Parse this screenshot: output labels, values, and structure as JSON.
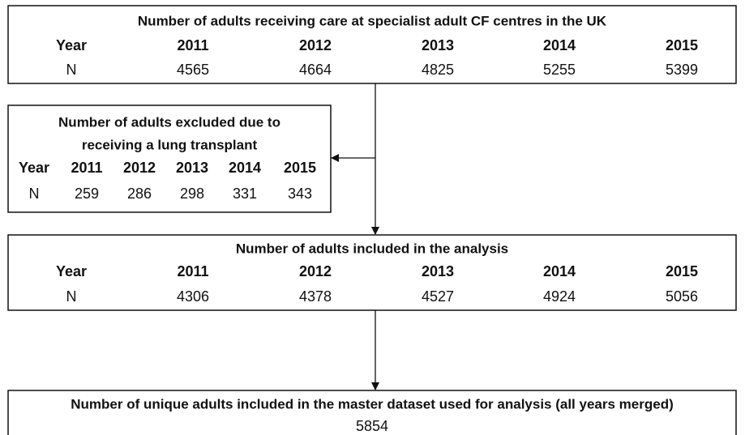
{
  "boxes": [
    {
      "title": [
        "Number of adults receiving care at specialist adult CF centres in the UK"
      ],
      "year_label": "Year",
      "years": [
        2011,
        2012,
        2013,
        2014,
        2015
      ],
      "n_label": "N",
      "values": [
        4565,
        4664,
        4825,
        5255,
        5399
      ]
    },
    {
      "title": [
        "Number of adults excluded due to",
        "receiving a lung transplant"
      ],
      "year_label": "Year",
      "years": [
        2011,
        2012,
        2013,
        2014,
        2015
      ],
      "n_label": "N",
      "values": [
        259,
        286,
        298,
        331,
        343
      ]
    },
    {
      "title": [
        "Number of adults included in the analysis"
      ],
      "year_label": "Year",
      "years": [
        2011,
        2012,
        2013,
        2014,
        2015
      ],
      "n_label": "N",
      "values": [
        4306,
        4378,
        4527,
        4924,
        5056
      ]
    }
  ],
  "final": {
    "title": "Number of unique adults included in the master dataset used for analysis (all years merged)",
    "value": 5854
  }
}
